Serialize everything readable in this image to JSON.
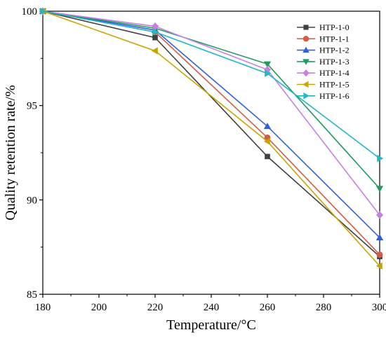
{
  "chart_data": {
    "type": "line",
    "title": "",
    "xlabel": "Temperature/°C",
    "ylabel": "Quality retention rate/%",
    "xlim": [
      180,
      300
    ],
    "ylim": [
      85,
      100
    ],
    "xticks": [
      180,
      200,
      220,
      240,
      260,
      280,
      300
    ],
    "yticks": [
      85,
      90,
      95,
      100
    ],
    "x": [
      180,
      220,
      260,
      300
    ],
    "legend_position": "top-right",
    "series": [
      {
        "name": "HTP-1-0",
        "color": "#404040",
        "marker": "square",
        "values": [
          100,
          98.6,
          92.3,
          87.0
        ]
      },
      {
        "name": "HTP-1-1",
        "color": "#d45a4a",
        "marker": "circle",
        "values": [
          100,
          98.9,
          93.3,
          87.1
        ]
      },
      {
        "name": "HTP-1-2",
        "color": "#2f5fe0",
        "marker": "triangle-up",
        "values": [
          100,
          99.0,
          93.9,
          88.0
        ]
      },
      {
        "name": "HTP-1-3",
        "color": "#1f9b5f",
        "marker": "triangle-down",
        "values": [
          100,
          99.1,
          97.2,
          90.6
        ]
      },
      {
        "name": "HTP-1-4",
        "color": "#c97fe0",
        "marker": "diamond",
        "values": [
          100,
          99.2,
          96.9,
          89.2
        ]
      },
      {
        "name": "HTP-1-5",
        "color": "#c9a400",
        "marker": "triangle-left",
        "values": [
          100,
          97.9,
          93.1,
          86.5
        ]
      },
      {
        "name": "HTP-1-6",
        "color": "#1fb8c9",
        "marker": "triangle-right",
        "values": [
          100,
          98.9,
          96.7,
          92.2
        ]
      }
    ]
  }
}
